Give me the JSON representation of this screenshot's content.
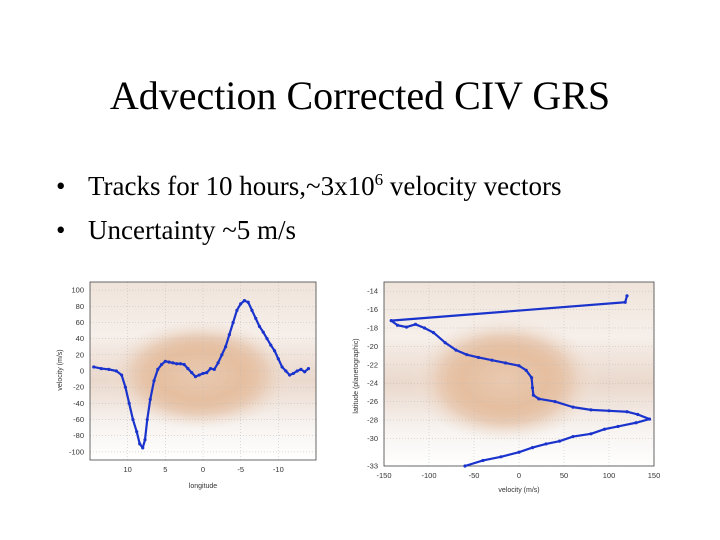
{
  "slide": {
    "title": "Advection Corrected CIV GRS",
    "bullets": [
      {
        "marker": "•",
        "pre": "Tracks for 10 hours,~3x10",
        "sup": "6",
        "post": " velocity vectors"
      },
      {
        "marker": "•",
        "text": "Uncertainty ~5 m/s"
      }
    ]
  },
  "colors": {
    "series": "#1a33cc",
    "axes": "#444444",
    "grid": "#bbbbbb"
  },
  "chart_data": [
    {
      "type": "scatter",
      "xlabel": "longitude",
      "ylabel": "velocity (m/s)",
      "x_reversed": true,
      "xlim": [
        15,
        -15
      ],
      "ylim": [
        -110,
        110
      ],
      "xticks": [
        10,
        5,
        0,
        -5,
        -10
      ],
      "yticks": [
        100,
        80,
        60,
        40,
        20,
        0,
        -20,
        -40,
        -60,
        -80,
        -100
      ],
      "grid": true,
      "series": [
        {
          "points": [
            [
              14.5,
              5
            ],
            [
              13.5,
              3
            ],
            [
              12.5,
              2
            ],
            [
              11.5,
              0
            ],
            [
              10.8,
              -5
            ],
            [
              10.3,
              -20
            ],
            [
              9.8,
              -40
            ],
            [
              9.3,
              -60
            ],
            [
              8.8,
              -75
            ],
            [
              8.4,
              -90
            ],
            [
              8,
              -95
            ],
            [
              7.7,
              -85
            ],
            [
              7.4,
              -60
            ],
            [
              7,
              -35
            ],
            [
              6.5,
              -12
            ],
            [
              6,
              2
            ],
            [
              5.5,
              8
            ],
            [
              5,
              12
            ],
            [
              4.5,
              11
            ],
            [
              4,
              10
            ],
            [
              3.5,
              9
            ],
            [
              3,
              9
            ],
            [
              2.5,
              8
            ],
            [
              2,
              3
            ],
            [
              1.5,
              -2
            ],
            [
              1,
              -7
            ],
            [
              0.5,
              -5
            ],
            [
              0,
              -3
            ],
            [
              -0.5,
              -2
            ],
            [
              -1,
              3
            ],
            [
              -1.5,
              2
            ],
            [
              -2,
              10
            ],
            [
              -2.5,
              20
            ],
            [
              -3,
              30
            ],
            [
              -3.5,
              45
            ],
            [
              -4,
              60
            ],
            [
              -4.5,
              75
            ],
            [
              -5,
              83
            ],
            [
              -5.5,
              87
            ],
            [
              -6,
              85
            ],
            [
              -6.5,
              75
            ],
            [
              -7,
              65
            ],
            [
              -7.5,
              55
            ],
            [
              -8,
              48
            ],
            [
              -8.5,
              40
            ],
            [
              -9,
              32
            ],
            [
              -9.5,
              25
            ],
            [
              -10,
              15
            ],
            [
              -10.5,
              5
            ],
            [
              -11,
              0
            ],
            [
              -11.5,
              -5
            ],
            [
              -12,
              -3
            ],
            [
              -12.5,
              0
            ],
            [
              -13,
              2
            ],
            [
              -13.5,
              -1
            ],
            [
              -14,
              3
            ]
          ]
        }
      ]
    },
    {
      "type": "scatter",
      "xlabel": "velocity (m/s)",
      "ylabel": "latitude (planetographic)",
      "xlim": [
        -150,
        150
      ],
      "ylim": [
        -33,
        -13
      ],
      "xticks": [
        -150,
        -100,
        -50,
        0,
        50,
        100,
        150
      ],
      "yticks": [
        -14,
        -16,
        -18,
        -20,
        -22,
        -24,
        -26,
        -28,
        -30,
        -33
      ],
      "grid": true,
      "series": [
        {
          "points": [
            [
              120,
              -14.5
            ],
            [
              118,
              -15.2
            ],
            [
              -142,
              -17.2
            ],
            [
              -135,
              -17.7
            ],
            [
              -125,
              -17.9
            ],
            [
              -115,
              -17.6
            ],
            [
              -105,
              -18.0
            ],
            [
              -95,
              -18.5
            ],
            [
              -82,
              -19.6
            ],
            [
              -70,
              -20.4
            ],
            [
              -58,
              -20.9
            ],
            [
              -45,
              -21.2
            ],
            [
              -30,
              -21.5
            ],
            [
              -15,
              -21.8
            ],
            [
              0,
              -22.1
            ],
            [
              8,
              -22.6
            ],
            [
              14,
              -23.4
            ],
            [
              15,
              -24.5
            ],
            [
              16,
              -25.3
            ],
            [
              22,
              -25.7
            ],
            [
              40,
              -26.0
            ],
            [
              60,
              -26.6
            ],
            [
              80,
              -26.9
            ],
            [
              100,
              -27.0
            ],
            [
              120,
              -27.1
            ],
            [
              132,
              -27.4
            ],
            [
              145,
              -27.9
            ],
            [
              130,
              -28.3
            ],
            [
              110,
              -28.7
            ],
            [
              95,
              -29.0
            ],
            [
              80,
              -29.5
            ],
            [
              60,
              -29.8
            ],
            [
              45,
              -30.3
            ],
            [
              30,
              -30.6
            ],
            [
              15,
              -31.0
            ],
            [
              0,
              -31.5
            ],
            [
              -20,
              -32.0
            ],
            [
              -40,
              -32.4
            ],
            [
              -60,
              -33.0
            ]
          ]
        }
      ]
    }
  ]
}
